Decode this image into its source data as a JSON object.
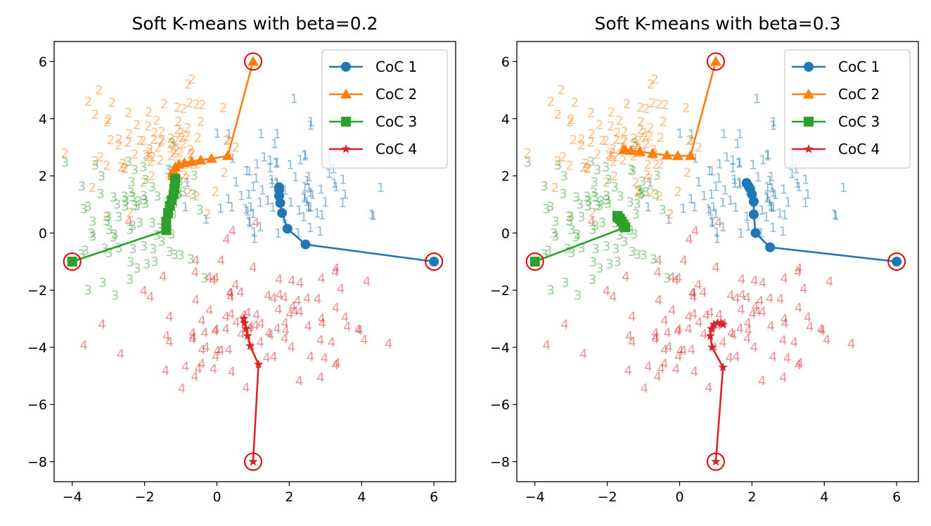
{
  "figure": {
    "background": "#ffffff"
  },
  "chart_data": [
    {
      "type": "line",
      "title": "Soft K-means with beta=0.2",
      "xlabel": "",
      "ylabel": "",
      "xlim": [
        -4.5,
        6.6
      ],
      "ylim": [
        -8.7,
        6.7
      ],
      "xticks": [
        -4,
        -2,
        0,
        2,
        4,
        6
      ],
      "yticks": [
        -8,
        -6,
        -4,
        -2,
        0,
        2,
        4,
        6
      ],
      "xtick_labels": [
        "−4",
        "−2",
        "0",
        "2",
        "4",
        "6"
      ],
      "ytick_labels": [
        "−8",
        "−6",
        "−4",
        "−2",
        "0",
        "2",
        "4",
        "6"
      ],
      "grid": false,
      "legend_position": "top-right",
      "initial_centers": [
        [
          6,
          -1
        ],
        [
          1,
          6
        ],
        [
          -4,
          -1
        ],
        [
          1,
          -8
        ]
      ],
      "series": [
        {
          "name": "CoC 1",
          "color": "#1f77b4",
          "marker": "circle",
          "points": [
            [
              6,
              -1
            ],
            [
              2.45,
              -0.4
            ],
            [
              1.95,
              0.15
            ],
            [
              1.8,
              0.7
            ],
            [
              1.75,
              1.05
            ],
            [
              1.72,
              1.3
            ],
            [
              1.72,
              1.5
            ],
            [
              1.72,
              1.6
            ]
          ]
        },
        {
          "name": "CoC 2",
          "color": "#ff7f0e",
          "marker": "triangle",
          "points": [
            [
              1,
              6
            ],
            [
              0.3,
              2.7
            ],
            [
              -0.15,
              2.6
            ],
            [
              -0.45,
              2.55
            ],
            [
              -0.7,
              2.5
            ],
            [
              -0.9,
              2.45
            ],
            [
              -1.05,
              2.4
            ],
            [
              -1.15,
              2.3
            ],
            [
              -1.2,
              2.2
            ],
            [
              -1.22,
              2.1
            ],
            [
              -1.22,
              2.0
            ]
          ]
        },
        {
          "name": "CoC 3",
          "color": "#2ca02c",
          "marker": "square",
          "points": [
            [
              -4,
              -1
            ],
            [
              -1.4,
              0.1
            ],
            [
              -1.4,
              0.4
            ],
            [
              -1.35,
              0.7
            ],
            [
              -1.3,
              0.95
            ],
            [
              -1.25,
              1.15
            ],
            [
              -1.2,
              1.35
            ],
            [
              -1.18,
              1.55
            ],
            [
              -1.16,
              1.75
            ],
            [
              -1.15,
              1.9
            ]
          ]
        },
        {
          "name": "CoC 4",
          "color": "#d62728",
          "marker": "star",
          "points": [
            [
              1,
              -8
            ],
            [
              1.15,
              -4.6
            ],
            [
              0.92,
              -3.95
            ],
            [
              0.85,
              -3.6
            ],
            [
              0.8,
              -3.35
            ],
            [
              0.76,
              -3.15
            ],
            [
              0.74,
              -3.0
            ]
          ]
        }
      ],
      "scatter_clusters": [
        {
          "label": "1",
          "color": "#1f77b4",
          "center": [
            1.9,
            1.7
          ],
          "spread": [
            1.1,
            1.1
          ],
          "count": 90,
          "seed": 11
        },
        {
          "label": "2",
          "color": "#ff7f0e",
          "center": [
            -1.7,
            3.1
          ],
          "spread": [
            0.9,
            0.9
          ],
          "count": 90,
          "seed": 22
        },
        {
          "label": "3",
          "color": "#2ca02c",
          "center": [
            -2.2,
            0.3
          ],
          "spread": [
            0.8,
            1.1
          ],
          "count": 80,
          "seed": 33
        },
        {
          "label": "4",
          "color": "#d62728",
          "center": [
            0.9,
            -3.0
          ],
          "spread": [
            1.8,
            1.4
          ],
          "count": 110,
          "seed": 44
        }
      ]
    },
    {
      "type": "line",
      "title": "Soft K-means with beta=0.3",
      "xlabel": "",
      "ylabel": "",
      "xlim": [
        -4.5,
        6.6
      ],
      "ylim": [
        -8.7,
        6.7
      ],
      "xticks": [
        -4,
        -2,
        0,
        2,
        4,
        6
      ],
      "yticks": [
        -8,
        -6,
        -4,
        -2,
        0,
        2,
        4,
        6
      ],
      "xtick_labels": [
        "−4",
        "−2",
        "0",
        "2",
        "4",
        "6"
      ],
      "ytick_labels": [
        "−8",
        "−6",
        "−4",
        "−2",
        "0",
        "2",
        "4",
        "6"
      ],
      "grid": false,
      "legend_position": "top-right",
      "initial_centers": [
        [
          6,
          -1
        ],
        [
          1,
          6
        ],
        [
          -4,
          -1
        ],
        [
          1,
          -8
        ]
      ],
      "series": [
        {
          "name": "CoC 1",
          "color": "#1f77b4",
          "marker": "circle",
          "points": [
            [
              6,
              -1
            ],
            [
              2.5,
              -0.5
            ],
            [
              2.1,
              0.0
            ],
            [
              2.05,
              0.65
            ],
            [
              2.05,
              1.1
            ],
            [
              2.0,
              1.35
            ],
            [
              1.95,
              1.55
            ],
            [
              1.9,
              1.65
            ],
            [
              1.85,
              1.75
            ]
          ]
        },
        {
          "name": "CoC 2",
          "color": "#ff7f0e",
          "marker": "triangle",
          "points": [
            [
              1,
              6
            ],
            [
              0.3,
              2.7
            ],
            [
              -0.05,
              2.7
            ],
            [
              -0.35,
              2.72
            ],
            [
              -0.75,
              2.78
            ],
            [
              -1.1,
              2.85
            ],
            [
              -1.35,
              2.88
            ],
            [
              -1.5,
              2.9
            ],
            [
              -1.55,
              2.9
            ]
          ]
        },
        {
          "name": "CoC 3",
          "color": "#2ca02c",
          "marker": "square",
          "points": [
            [
              -4,
              -1
            ],
            [
              -1.5,
              0.2
            ],
            [
              -1.55,
              0.3
            ],
            [
              -1.6,
              0.4
            ],
            [
              -1.65,
              0.5
            ],
            [
              -1.7,
              0.55
            ],
            [
              -1.72,
              0.6
            ]
          ]
        },
        {
          "name": "CoC 4",
          "color": "#d62728",
          "marker": "star",
          "points": [
            [
              1,
              -8
            ],
            [
              1.2,
              -4.7
            ],
            [
              0.9,
              -4.0
            ],
            [
              0.85,
              -3.6
            ],
            [
              0.88,
              -3.35
            ],
            [
              0.95,
              -3.2
            ],
            [
              1.05,
              -3.15
            ],
            [
              1.15,
              -3.15
            ],
            [
              1.2,
              -3.2
            ]
          ]
        }
      ],
      "scatter_clusters": [
        {
          "label": "1",
          "color": "#1f77b4",
          "center": [
            1.9,
            1.7
          ],
          "spread": [
            1.1,
            1.1
          ],
          "count": 90,
          "seed": 11
        },
        {
          "label": "2",
          "color": "#ff7f0e",
          "center": [
            -1.7,
            3.1
          ],
          "spread": [
            0.9,
            0.9
          ],
          "count": 90,
          "seed": 22
        },
        {
          "label": "3",
          "color": "#2ca02c",
          "center": [
            -2.2,
            0.3
          ],
          "spread": [
            0.8,
            1.1
          ],
          "count": 80,
          "seed": 33
        },
        {
          "label": "4",
          "color": "#d62728",
          "center": [
            0.9,
            -3.0
          ],
          "spread": [
            1.8,
            1.4
          ],
          "count": 110,
          "seed": 44
        }
      ]
    }
  ]
}
